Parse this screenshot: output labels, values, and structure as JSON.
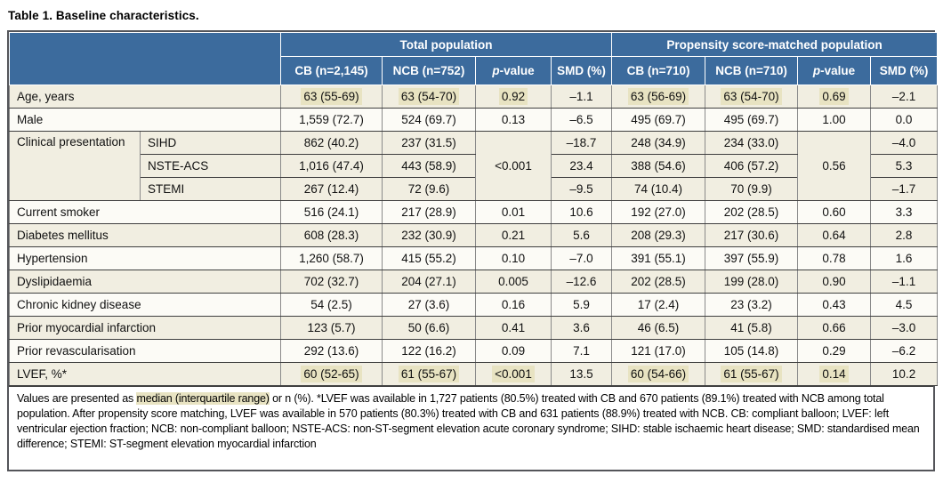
{
  "page": {
    "title": "Table 1. Baseline characteristics."
  },
  "colors": {
    "header_blue": "#3c6b9d",
    "row_cream": "#f1eee1",
    "row_white": "#fcfbf6",
    "highlight": "#e8e3c2",
    "border_dark": "#3f3f3f",
    "border_light": "#8a8a8a",
    "frame_border": "#54555a",
    "text": "#111111",
    "header_text": "#ffffff"
  },
  "table": {
    "group_headers": [
      {
        "label": "Total population"
      },
      {
        "label": "Propensity score-matched population"
      }
    ],
    "column_headers": [
      {
        "em": "",
        "text": "CB (n=2,145)"
      },
      {
        "em": "",
        "text": "NCB (n=752)"
      },
      {
        "em": "p",
        "text": "-value"
      },
      {
        "em": "",
        "text": "SMD (%)"
      },
      {
        "em": "",
        "text": "CB (n=710)"
      },
      {
        "em": "",
        "text": "NCB (n=710)"
      },
      {
        "em": "p",
        "text": "-value"
      },
      {
        "em": "",
        "text": "SMD (%)"
      }
    ],
    "rows": [
      {
        "shade": true,
        "leads": [
          {
            "t": "Age, years",
            "colspan": 2
          }
        ],
        "cells": [
          {
            "t": "63 (55-69)",
            "hl": true
          },
          {
            "t": "63 (54-70)",
            "hl": true
          },
          {
            "t": "0.92",
            "hl": true
          },
          {
            "t": "–1.1"
          },
          {
            "t": "63 (56-69)",
            "hl": true
          },
          {
            "t": "63 (54-70)",
            "hl": true
          },
          {
            "t": "0.69",
            "hl": true
          },
          {
            "t": "–2.1"
          }
        ]
      },
      {
        "shade": false,
        "leads": [
          {
            "t": "Male",
            "colspan": 2
          }
        ],
        "cells": [
          {
            "t": "1,559 (72.7)"
          },
          {
            "t": "524 (69.7)"
          },
          {
            "t": "0.13"
          },
          {
            "t": "–6.5"
          },
          {
            "t": "495 (69.7)"
          },
          {
            "t": "495 (69.7)"
          },
          {
            "t": "1.00"
          },
          {
            "t": "0.0"
          }
        ]
      },
      {
        "shade": true,
        "leads": [
          {
            "t": "Clinical presentation",
            "rowspan": 3,
            "cls": "label-cell top"
          },
          {
            "t": "SIHD",
            "cls": "sublabel-cell"
          }
        ],
        "cells": [
          {
            "t": "862 (40.2)"
          },
          {
            "t": "237 (31.5)"
          },
          {
            "t": "<0.001",
            "rowspan": 3
          },
          {
            "t": "–18.7"
          },
          {
            "t": "248 (34.9)"
          },
          {
            "t": "234 (33.0)"
          },
          {
            "t": "0.56",
            "rowspan": 3
          },
          {
            "t": "–4.0"
          }
        ]
      },
      {
        "shade": true,
        "leads": [
          {
            "t": "NSTE-ACS",
            "cls": "sublabel-cell"
          }
        ],
        "cells": [
          {
            "t": "1,016 (47.4)"
          },
          {
            "t": "443 (58.9)"
          },
          {
            "t": "23.4"
          },
          {
            "t": "388 (54.6)"
          },
          {
            "t": "406 (57.2)"
          },
          {
            "t": "5.3"
          }
        ]
      },
      {
        "shade": true,
        "leads": [
          {
            "t": "STEMI",
            "cls": "sublabel-cell"
          }
        ],
        "cells": [
          {
            "t": "267 (12.4)"
          },
          {
            "t": "72 (9.6)"
          },
          {
            "t": "–9.5"
          },
          {
            "t": "74 (10.4)"
          },
          {
            "t": "70 (9.9)"
          },
          {
            "t": "–1.7"
          }
        ]
      },
      {
        "shade": false,
        "leads": [
          {
            "t": "Current smoker",
            "colspan": 2
          }
        ],
        "cells": [
          {
            "t": "516 (24.1)"
          },
          {
            "t": "217 (28.9)"
          },
          {
            "t": "0.01"
          },
          {
            "t": "10.6"
          },
          {
            "t": "192 (27.0)"
          },
          {
            "t": "202 (28.5)"
          },
          {
            "t": "0.60"
          },
          {
            "t": "3.3"
          }
        ]
      },
      {
        "shade": true,
        "leads": [
          {
            "t": "Diabetes mellitus",
            "colspan": 2
          }
        ],
        "cells": [
          {
            "t": "608 (28.3)"
          },
          {
            "t": "232 (30.9)"
          },
          {
            "t": "0.21"
          },
          {
            "t": "5.6"
          },
          {
            "t": "208 (29.3)"
          },
          {
            "t": "217 (30.6)"
          },
          {
            "t": "0.64"
          },
          {
            "t": "2.8"
          }
        ]
      },
      {
        "shade": false,
        "leads": [
          {
            "t": "Hypertension",
            "colspan": 2
          }
        ],
        "cells": [
          {
            "t": "1,260 (58.7)"
          },
          {
            "t": "415 (55.2)"
          },
          {
            "t": "0.10"
          },
          {
            "t": "–7.0"
          },
          {
            "t": "391 (55.1)"
          },
          {
            "t": "397 (55.9)"
          },
          {
            "t": "0.78"
          },
          {
            "t": "1.6"
          }
        ]
      },
      {
        "shade": true,
        "leads": [
          {
            "t": "Dyslipidaemia",
            "colspan": 2
          }
        ],
        "cells": [
          {
            "t": "702 (32.7)"
          },
          {
            "t": "204 (27.1)"
          },
          {
            "t": "0.005"
          },
          {
            "t": "–12.6"
          },
          {
            "t": "202 (28.5)"
          },
          {
            "t": "199 (28.0)"
          },
          {
            "t": "0.90"
          },
          {
            "t": "–1.1"
          }
        ]
      },
      {
        "shade": false,
        "leads": [
          {
            "t": "Chronic kidney disease",
            "colspan": 2
          }
        ],
        "cells": [
          {
            "t": "54 (2.5)"
          },
          {
            "t": "27 (3.6)"
          },
          {
            "t": "0.16"
          },
          {
            "t": "5.9"
          },
          {
            "t": "17 (2.4)"
          },
          {
            "t": "23 (3.2)"
          },
          {
            "t": "0.43"
          },
          {
            "t": "4.5"
          }
        ]
      },
      {
        "shade": true,
        "leads": [
          {
            "t": "Prior myocardial infarction",
            "colspan": 2
          }
        ],
        "cells": [
          {
            "t": "123 (5.7)"
          },
          {
            "t": "50 (6.6)"
          },
          {
            "t": "0.41"
          },
          {
            "t": "3.6"
          },
          {
            "t": "46 (6.5)"
          },
          {
            "t": "41 (5.8)"
          },
          {
            "t": "0.66"
          },
          {
            "t": "–3.0"
          }
        ]
      },
      {
        "shade": false,
        "leads": [
          {
            "t": "Prior revascularisation",
            "colspan": 2
          }
        ],
        "cells": [
          {
            "t": "292 (13.6)"
          },
          {
            "t": "122 (16.2)"
          },
          {
            "t": "0.09"
          },
          {
            "t": "7.1"
          },
          {
            "t": "121 (17.0)"
          },
          {
            "t": "105 (14.8)"
          },
          {
            "t": "0.29"
          },
          {
            "t": "–6.2"
          }
        ]
      },
      {
        "shade": true,
        "leads": [
          {
            "t": "LVEF, %*",
            "colspan": 2
          }
        ],
        "cells": [
          {
            "t": "60 (52-65)",
            "hl": true
          },
          {
            "t": "61 (55-67)",
            "hl": true
          },
          {
            "t": "<0.001",
            "hl": true
          },
          {
            "t": "13.5"
          },
          {
            "t": "60 (54-66)",
            "hl": true
          },
          {
            "t": "61 (55-67)",
            "hl": true
          },
          {
            "t": "0.14",
            "hl": true
          },
          {
            "t": "10.2"
          }
        ]
      }
    ]
  },
  "footnote": {
    "part1": "Values are presented as ",
    "highlight": "median (interquartile range)",
    "part2": " or n (%). *LVEF was available in 1,727 patients (80.5%) treated with CB and 670 patients (89.1%) treated with NCB among total population. After propensity score matching, LVEF was available in 570 patients (80.3%) treated with CB and 631 patients (88.9%) treated with NCB. CB: compliant balloon; LVEF: left ventricular ejection fraction; NCB: non-compliant balloon; NSTE-ACS: non-ST-segment elevation acute coronary syndrome; SIHD: stable ischaemic heart disease; SMD: standardised mean difference; STEMI: ST-segment elevation myocardial infarction"
  }
}
